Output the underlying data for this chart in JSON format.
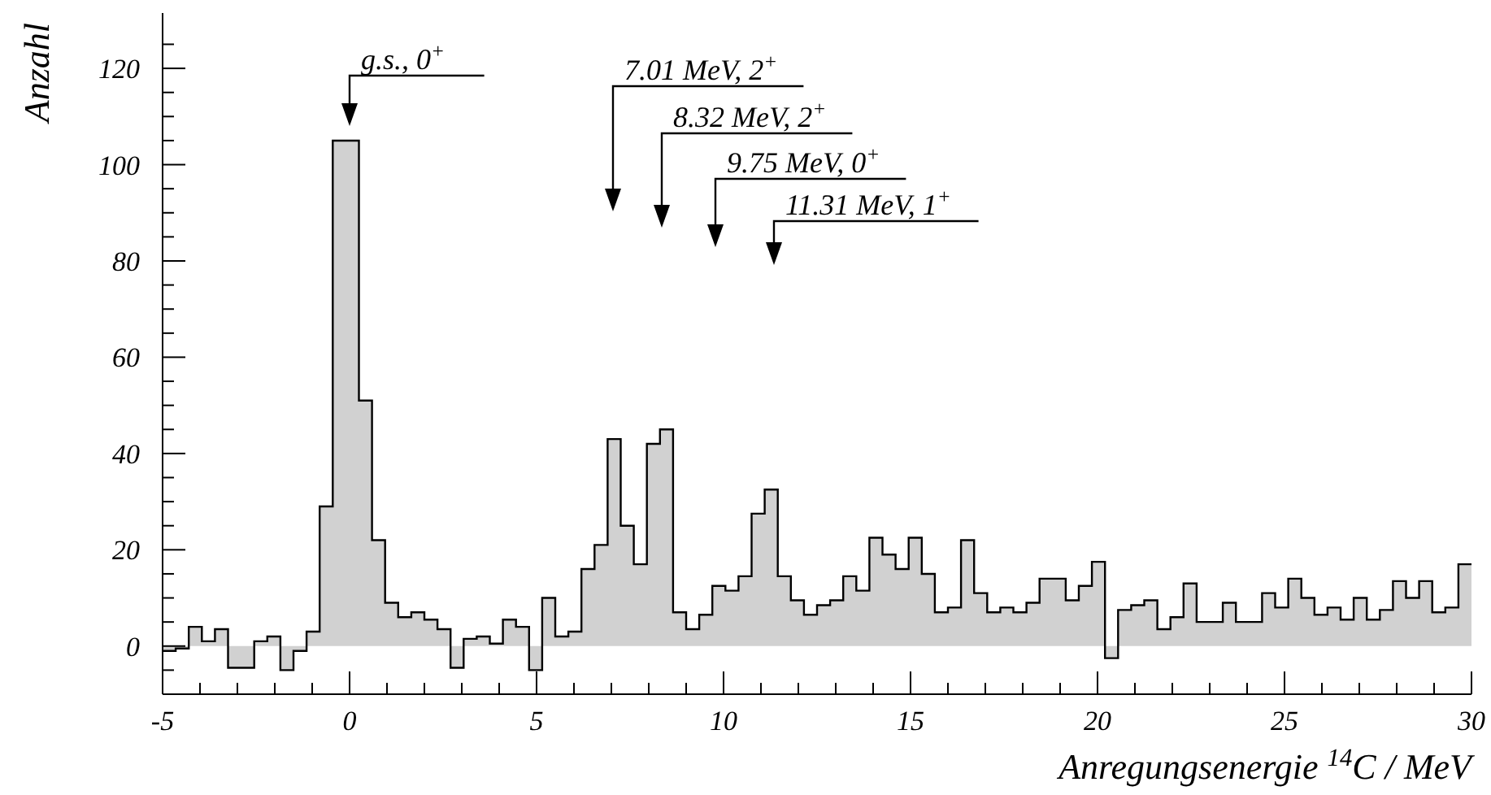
{
  "chart_data": {
    "type": "histogram",
    "xlabel": "Anregungsenergie $^{14}$C / MeV",
    "ylabel": "Anzahl",
    "bins": [
      -5,
      -4.65,
      -4.3,
      -3.95,
      -3.6,
      -3.25,
      -2.9,
      -2.55,
      -2.2,
      -1.85,
      -1.5,
      -1.15,
      -0.8,
      -0.45,
      -0.1,
      0.25,
      0.6,
      0.95,
      1.3,
      1.65,
      2,
      2.35,
      2.7,
      3.05,
      3.4,
      3.75,
      4.1,
      4.45,
      4.8,
      5.15,
      5.5,
      5.85,
      6.2,
      6.55,
      6.9,
      7.25,
      7.6,
      7.95,
      8.3,
      8.65,
      9,
      9.35,
      9.7,
      10.05,
      10.4,
      10.75,
      11.1,
      11.45,
      11.8,
      12.15,
      12.5,
      12.85,
      13.2,
      13.55,
      13.9,
      14.25,
      14.6,
      14.95,
      15.3,
      15.65,
      16,
      16.35,
      16.7,
      17.05,
      17.4,
      17.75,
      18.1,
      18.45,
      18.8,
      19.15,
      19.5,
      19.85,
      20.2,
      20.55,
      20.9,
      21.25,
      21.6,
      21.95,
      22.3,
      22.65,
      23,
      23.35,
      23.7,
      24.05,
      24.4,
      24.75,
      25.1,
      25.45,
      25.8,
      26.15,
      26.5,
      26.85,
      27.2,
      27.55,
      27.9,
      28.25,
      28.6,
      28.95,
      29.3,
      29.65,
      30
    ],
    "values": [
      -1,
      -0.5,
      4,
      1,
      3.5,
      -4.5,
      -4.5,
      1,
      2,
      -5,
      -1,
      3,
      29,
      105,
      105,
      51,
      22,
      9,
      6,
      7,
      5.5,
      3.5,
      -4.5,
      1.5,
      2,
      0.5,
      5.5,
      4,
      -5,
      10,
      2,
      3,
      16,
      21,
      43,
      25,
      17,
      42,
      45,
      7,
      3.5,
      6.5,
      12.5,
      11.5,
      14.5,
      27.5,
      32.5,
      14.5,
      9.5,
      6.5,
      8.5,
      9.5,
      14.5,
      11.5,
      22.5,
      19,
      16,
      22.5,
      15,
      7,
      8,
      22,
      11,
      7,
      8,
      7,
      9,
      14,
      14,
      9.5,
      12.5,
      17.5,
      -2.5,
      7.5,
      8.5,
      9.5,
      3.5,
      6,
      13,
      5,
      5,
      9,
      5,
      5,
      11,
      8,
      14,
      10,
      6.5,
      8,
      5.5,
      10,
      5.5,
      7.5,
      13.5,
      10,
      13.5,
      7,
      8,
      17
    ],
    "color": "#000000",
    "xlim": [
      -5,
      30
    ],
    "xticks": [
      -5,
      {
        "value": -4,
        "label": null
      },
      {
        "value": -3,
        "label": null
      },
      {
        "value": -2,
        "label": null
      },
      {
        "value": -1,
        "label": null
      },
      0,
      {
        "value": 1,
        "label": null
      },
      {
        "value": 2,
        "label": null
      },
      {
        "value": 3,
        "label": null
      },
      {
        "value": 4,
        "label": null
      },
      5,
      {
        "value": 6,
        "label": null
      },
      {
        "value": 7,
        "label": null
      },
      {
        "value": 8,
        "label": null
      },
      {
        "value": 9,
        "label": null
      },
      10,
      {
        "value": 11,
        "label": null
      },
      {
        "value": 12,
        "label": null
      },
      {
        "value": 13,
        "label": null
      },
      {
        "value": 14,
        "label": null
      },
      15,
      {
        "value": 16,
        "label": null
      },
      {
        "value": 17,
        "label": null
      },
      {
        "value": 18,
        "label": null
      },
      {
        "value": 19,
        "label": null
      },
      20,
      {
        "value": 21,
        "label": null
      },
      {
        "value": 22,
        "label": null
      },
      {
        "value": 23,
        "label": null
      },
      {
        "value": 24,
        "label": null
      },
      25,
      {
        "value": 26,
        "label": null
      },
      {
        "value": 27,
        "label": null
      },
      {
        "value": 28,
        "label": null
      },
      {
        "value": 29,
        "label": null
      },
      30
    ],
    "ylim": [
      -10,
      131.5
    ],
    "yticks": [
      {
        "value": -5,
        "label": null
      },
      0,
      {
        "value": 5,
        "label": null
      },
      {
        "value": 10,
        "label": null
      },
      {
        "value": 15,
        "label": null
      },
      20,
      {
        "value": 25,
        "label": null
      },
      {
        "value": 30,
        "label": null
      },
      {
        "value": 35,
        "label": null
      },
      40,
      {
        "value": 45,
        "label": null
      },
      {
        "value": 50,
        "label": null
      },
      {
        "value": 55,
        "label": null
      },
      60,
      {
        "value": 65,
        "label": null
      },
      {
        "value": 70,
        "label": null
      },
      {
        "value": 75,
        "label": null
      },
      80,
      {
        "value": 85,
        "label": null
      },
      {
        "value": 90,
        "label": null
      },
      {
        "value": 95,
        "label": null
      },
      100,
      {
        "value": 105,
        "label": null
      },
      {
        "value": 110,
        "label": null
      },
      {
        "value": 115,
        "label": null
      },
      120,
      {
        "value": 125,
        "label": null
      }
    ],
    "annotations": [
      {
        "text": "g.s., 0$^{+}$",
        "x": 0,
        "y": 105
      },
      "7.01 MeV, 2$^{+}$",
      "8.32 MeV, 2$^{+}$",
      "9.75 MeV, 0$^{+}$",
      "11.31 MeV, 1$^{+}$"
    ]
  }
}
